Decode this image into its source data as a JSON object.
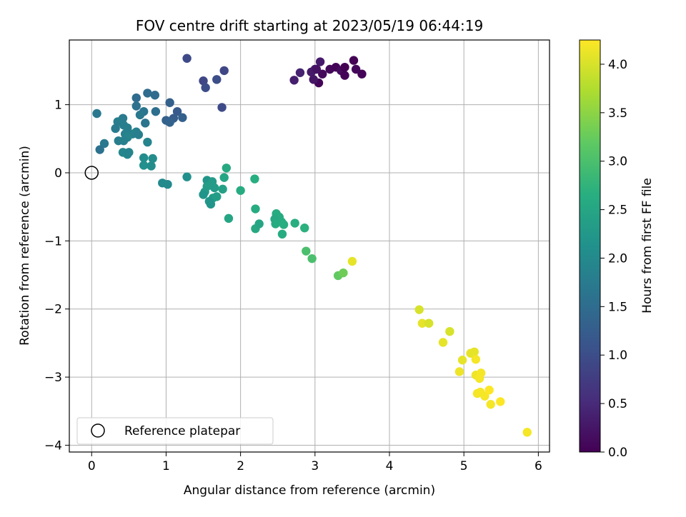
{
  "chart_data": {
    "type": "scatter",
    "title": "FOV centre drift starting at 2023/05/19 06:44:19",
    "xlabel": "Angular distance from reference (arcmin)",
    "ylabel": "Rotation from reference (arcmin)",
    "xlim": [
      -0.3,
      6.15
    ],
    "ylim": [
      -4.1,
      1.95
    ],
    "xticks": [
      0,
      1,
      2,
      3,
      4,
      5,
      6
    ],
    "yticks": [
      -4,
      -3,
      -2,
      -1,
      0,
      1
    ],
    "xtick_labels": [
      "0",
      "1",
      "2",
      "3",
      "4",
      "5",
      "6"
    ],
    "ytick_labels": [
      "−4",
      "−3",
      "−2",
      "−1",
      "0",
      "1"
    ],
    "grid": true,
    "legend": {
      "label": "Reference platepar",
      "placement": "lower-left"
    },
    "reference_point": {
      "x": 0,
      "y": 0,
      "marker": "open-circle"
    },
    "colorbar": {
      "label": "Hours from first FF file",
      "colormap": "viridis",
      "range": [
        0.0,
        4.25
      ],
      "ticks": [
        0.0,
        0.5,
        1.0,
        1.5,
        2.0,
        2.5,
        3.0,
        3.5,
        4.0
      ],
      "tick_labels": [
        "0.0",
        "0.5",
        "1.0",
        "1.5",
        "2.0",
        "2.5",
        "3.0",
        "3.5",
        "4.0"
      ]
    },
    "points": [
      {
        "x": 3.05,
        "y": 1.32,
        "c": 0.05
      },
      {
        "x": 3.1,
        "y": 1.45,
        "c": 0.1
      },
      {
        "x": 3.2,
        "y": 1.52,
        "c": 0.08
      },
      {
        "x": 3.28,
        "y": 1.55,
        "c": 0.05
      },
      {
        "x": 3.35,
        "y": 1.5,
        "c": 0.12
      },
      {
        "x": 3.4,
        "y": 1.55,
        "c": 0.0
      },
      {
        "x": 3.4,
        "y": 1.43,
        "c": 0.05
      },
      {
        "x": 3.52,
        "y": 1.65,
        "c": 0.02
      },
      {
        "x": 3.55,
        "y": 1.52,
        "c": 0.08
      },
      {
        "x": 3.63,
        "y": 1.45,
        "c": 0.05
      },
      {
        "x": 3.07,
        "y": 1.63,
        "c": 0.3
      },
      {
        "x": 3.0,
        "y": 1.52,
        "c": 0.35
      },
      {
        "x": 2.95,
        "y": 1.48,
        "c": 0.3
      },
      {
        "x": 2.98,
        "y": 1.37,
        "c": 0.25
      },
      {
        "x": 2.8,
        "y": 1.47,
        "c": 0.4
      },
      {
        "x": 2.72,
        "y": 1.36,
        "c": 0.35
      },
      {
        "x": 3.02,
        "y": 1.52,
        "c": 0.2
      },
      {
        "x": 1.28,
        "y": 1.68,
        "c": 0.95
      },
      {
        "x": 1.5,
        "y": 1.35,
        "c": 0.9
      },
      {
        "x": 1.53,
        "y": 1.25,
        "c": 1.0
      },
      {
        "x": 1.68,
        "y": 1.37,
        "c": 1.0
      },
      {
        "x": 1.78,
        "y": 1.5,
        "c": 0.9
      },
      {
        "x": 1.75,
        "y": 0.96,
        "c": 0.95
      },
      {
        "x": 1.05,
        "y": 1.03,
        "c": 1.3
      },
      {
        "x": 1.15,
        "y": 0.9,
        "c": 1.2
      },
      {
        "x": 1.1,
        "y": 0.8,
        "c": 1.25
      },
      {
        "x": 1.22,
        "y": 0.81,
        "c": 1.3
      },
      {
        "x": 1.0,
        "y": 0.77,
        "c": 1.3
      },
      {
        "x": 1.05,
        "y": 0.74,
        "c": 1.35
      },
      {
        "x": 0.75,
        "y": 1.17,
        "c": 1.5
      },
      {
        "x": 0.85,
        "y": 1.14,
        "c": 1.5
      },
      {
        "x": 0.6,
        "y": 1.1,
        "c": 1.5
      },
      {
        "x": 0.6,
        "y": 0.98,
        "c": 1.6
      },
      {
        "x": 0.86,
        "y": 0.9,
        "c": 1.55
      },
      {
        "x": 0.7,
        "y": 0.9,
        "c": 1.65
      },
      {
        "x": 0.65,
        "y": 0.85,
        "c": 1.7
      },
      {
        "x": 0.72,
        "y": 0.73,
        "c": 1.65
      },
      {
        "x": 0.42,
        "y": 0.8,
        "c": 1.75
      },
      {
        "x": 0.35,
        "y": 0.75,
        "c": 1.8
      },
      {
        "x": 0.43,
        "y": 0.7,
        "c": 1.8
      },
      {
        "x": 0.48,
        "y": 0.66,
        "c": 1.8
      },
      {
        "x": 0.32,
        "y": 0.65,
        "c": 1.75
      },
      {
        "x": 0.6,
        "y": 0.6,
        "c": 1.85
      },
      {
        "x": 0.55,
        "y": 0.57,
        "c": 1.85
      },
      {
        "x": 0.63,
        "y": 0.56,
        "c": 1.8
      },
      {
        "x": 0.45,
        "y": 0.57,
        "c": 1.85
      },
      {
        "x": 0.48,
        "y": 0.52,
        "c": 1.9
      },
      {
        "x": 0.36,
        "y": 0.47,
        "c": 1.8
      },
      {
        "x": 0.43,
        "y": 0.47,
        "c": 1.85
      },
      {
        "x": 0.75,
        "y": 0.45,
        "c": 1.9
      },
      {
        "x": 0.07,
        "y": 0.87,
        "c": 1.7
      },
      {
        "x": 0.17,
        "y": 0.43,
        "c": 1.7
      },
      {
        "x": 0.11,
        "y": 0.34,
        "c": 1.6
      },
      {
        "x": 0.42,
        "y": 0.3,
        "c": 1.95
      },
      {
        "x": 0.48,
        "y": 0.27,
        "c": 1.95
      },
      {
        "x": 0.5,
        "y": 0.3,
        "c": 1.9
      },
      {
        "x": 0.7,
        "y": 0.22,
        "c": 2.05
      },
      {
        "x": 0.82,
        "y": 0.21,
        "c": 2.05
      },
      {
        "x": 0.7,
        "y": 0.11,
        "c": 2.1
      },
      {
        "x": 0.8,
        "y": 0.1,
        "c": 2.05
      },
      {
        "x": 0.95,
        "y": -0.15,
        "c": 2.0
      },
      {
        "x": 1.02,
        "y": -0.17,
        "c": 2.0
      },
      {
        "x": 1.28,
        "y": -0.06,
        "c": 2.1
      },
      {
        "x": 1.55,
        "y": -0.11,
        "c": 2.2
      },
      {
        "x": 1.62,
        "y": -0.13,
        "c": 2.3
      },
      {
        "x": 1.55,
        "y": -0.2,
        "c": 2.35
      },
      {
        "x": 1.65,
        "y": -0.22,
        "c": 2.3
      },
      {
        "x": 1.52,
        "y": -0.28,
        "c": 2.3
      },
      {
        "x": 1.5,
        "y": -0.32,
        "c": 2.2
      },
      {
        "x": 1.63,
        "y": -0.37,
        "c": 2.3
      },
      {
        "x": 1.58,
        "y": -0.42,
        "c": 2.2
      },
      {
        "x": 1.6,
        "y": -0.46,
        "c": 2.2
      },
      {
        "x": 1.68,
        "y": -0.35,
        "c": 2.35
      },
      {
        "x": 1.76,
        "y": -0.24,
        "c": 2.4
      },
      {
        "x": 1.78,
        "y": -0.07,
        "c": 2.5
      },
      {
        "x": 1.81,
        "y": 0.07,
        "c": 2.55
      },
      {
        "x": 1.84,
        "y": -0.67,
        "c": 2.5
      },
      {
        "x": 2.0,
        "y": -0.26,
        "c": 2.6
      },
      {
        "x": 2.19,
        "y": -0.09,
        "c": 2.65
      },
      {
        "x": 2.2,
        "y": -0.53,
        "c": 2.6
      },
      {
        "x": 2.2,
        "y": -0.82,
        "c": 2.55
      },
      {
        "x": 2.25,
        "y": -0.75,
        "c": 2.5
      },
      {
        "x": 2.48,
        "y": -0.6,
        "c": 2.6
      },
      {
        "x": 2.52,
        "y": -0.65,
        "c": 2.6
      },
      {
        "x": 2.46,
        "y": -0.68,
        "c": 2.55
      },
      {
        "x": 2.47,
        "y": -0.75,
        "c": 2.6
      },
      {
        "x": 2.55,
        "y": -0.72,
        "c": 2.6
      },
      {
        "x": 2.58,
        "y": -0.76,
        "c": 2.65
      },
      {
        "x": 2.56,
        "y": -0.9,
        "c": 2.6
      },
      {
        "x": 2.73,
        "y": -0.74,
        "c": 2.65
      },
      {
        "x": 2.86,
        "y": -0.81,
        "c": 2.7
      },
      {
        "x": 2.88,
        "y": -1.15,
        "c": 3.0
      },
      {
        "x": 2.96,
        "y": -1.26,
        "c": 3.0
      },
      {
        "x": 3.31,
        "y": -1.51,
        "c": 3.2
      },
      {
        "x": 3.38,
        "y": -1.47,
        "c": 3.3
      },
      {
        "x": 3.5,
        "y": -1.3,
        "c": 4.1
      },
      {
        "x": 4.4,
        "y": -2.01,
        "c": 4.0
      },
      {
        "x": 4.44,
        "y": -2.21,
        "c": 4.1
      },
      {
        "x": 4.53,
        "y": -2.21,
        "c": 4.0
      },
      {
        "x": 4.72,
        "y": -2.49,
        "c": 4.1
      },
      {
        "x": 4.81,
        "y": -2.33,
        "c": 4.0
      },
      {
        "x": 4.94,
        "y": -2.92,
        "c": 4.15
      },
      {
        "x": 4.98,
        "y": -2.75,
        "c": 4.1
      },
      {
        "x": 5.09,
        "y": -2.65,
        "c": 4.1
      },
      {
        "x": 5.14,
        "y": -2.63,
        "c": 4.1
      },
      {
        "x": 5.16,
        "y": -2.74,
        "c": 4.2
      },
      {
        "x": 5.16,
        "y": -2.97,
        "c": 4.15
      },
      {
        "x": 5.21,
        "y": -3.02,
        "c": 4.2
      },
      {
        "x": 5.23,
        "y": -2.94,
        "c": 4.2
      },
      {
        "x": 5.18,
        "y": -3.24,
        "c": 4.2
      },
      {
        "x": 5.22,
        "y": -3.22,
        "c": 4.2
      },
      {
        "x": 5.28,
        "y": -3.28,
        "c": 4.2
      },
      {
        "x": 5.34,
        "y": -3.19,
        "c": 4.25
      },
      {
        "x": 5.36,
        "y": -3.4,
        "c": 4.2
      },
      {
        "x": 5.49,
        "y": -3.36,
        "c": 4.25
      },
      {
        "x": 5.85,
        "y": -3.81,
        "c": 4.2
      }
    ]
  }
}
